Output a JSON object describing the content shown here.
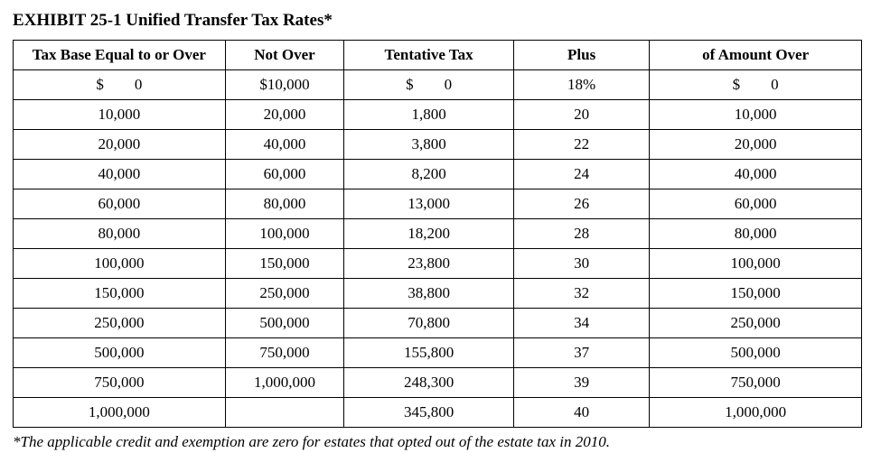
{
  "title": "EXHIBIT 25-1 Unified Transfer Tax Rates*",
  "footnote": "*The applicable credit and exemption are zero for estates that opted out of the estate tax in 2010.",
  "table": {
    "columns": [
      "Tax Base Equal to or Over",
      "Not Over",
      "Tentative Tax",
      "Plus",
      "of Amount Over"
    ],
    "column_widths_pct": [
      25,
      14,
      20,
      16,
      25
    ],
    "border_color": "#000000",
    "background_color": "#ffffff",
    "header_fontweight": "bold",
    "font_family": "Times New Roman",
    "header_fontsize": 17,
    "cell_fontsize": 17,
    "rows": [
      [
        "$  0",
        "$10,000",
        "$  0",
        "18%",
        "$  0"
      ],
      [
        "10,000",
        "20,000",
        "1,800",
        "20",
        "10,000"
      ],
      [
        "20,000",
        "40,000",
        "3,800",
        "22",
        "20,000"
      ],
      [
        "40,000",
        "60,000",
        "8,200",
        "24",
        "40,000"
      ],
      [
        "60,000",
        "80,000",
        "13,000",
        "26",
        "60,000"
      ],
      [
        "80,000",
        "100,000",
        "18,200",
        "28",
        "80,000"
      ],
      [
        "100,000",
        "150,000",
        "23,800",
        "30",
        "100,000"
      ],
      [
        "150,000",
        "250,000",
        "38,800",
        "32",
        "150,000"
      ],
      [
        "250,000",
        "500,000",
        "70,800",
        "34",
        "250,000"
      ],
      [
        "500,000",
        "750,000",
        "155,800",
        "37",
        "500,000"
      ],
      [
        "750,000",
        "1,000,000",
        "248,300",
        "39",
        "750,000"
      ],
      [
        "1,000,000",
        "",
        "345,800",
        "40",
        "1,000,000"
      ]
    ]
  }
}
